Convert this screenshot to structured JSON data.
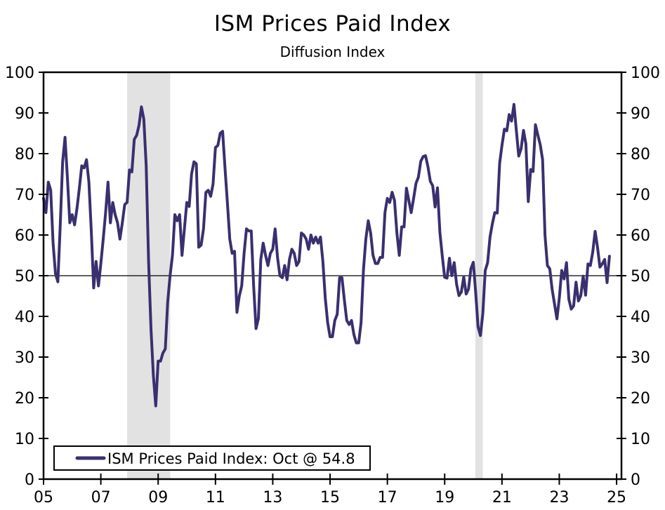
{
  "title": "ISM Prices Paid Index",
  "subtitle": "Diffusion Index",
  "legend": {
    "label": "ISM Prices Paid Index: Oct @ 54.8"
  },
  "colors": {
    "line": "#39306f",
    "recession_band": "#e2e2e2",
    "axis": "#000000",
    "background": "#ffffff"
  },
  "chart_data": {
    "type": "line",
    "title": "ISM Prices Paid Index",
    "subtitle": "Diffusion Index",
    "series_name": "ISM Prices Paid Index",
    "frequency": "monthly",
    "start_year": 2005,
    "start_month": 1,
    "last_point": {
      "label": "Oct",
      "value": 54.8
    },
    "ylim": [
      0,
      100
    ],
    "y_tick_step": 10,
    "y_tick_labels": [
      "0",
      "10",
      "20",
      "30",
      "40",
      "50",
      "60",
      "70",
      "80",
      "90",
      "100"
    ],
    "x_tick_years": [
      2005,
      2007,
      2009,
      2011,
      2013,
      2015,
      2017,
      2019,
      2021,
      2023,
      2025
    ],
    "x_tick_labels": [
      "05",
      "07",
      "09",
      "11",
      "13",
      "15",
      "17",
      "19",
      "21",
      "23",
      "25"
    ],
    "x_domain": [
      2005,
      2025.17
    ],
    "reference_line": 50,
    "recession_bands": [
      [
        2007.92,
        2009.42
      ],
      [
        2020.07,
        2020.33
      ]
    ],
    "legend_position": "bottom-left",
    "grid": "off",
    "values": [
      69,
      65.5,
      73,
      71,
      58,
      50.5,
      48.5,
      62.5,
      78,
      84,
      74,
      63,
      65,
      62.5,
      66.5,
      71.5,
      77,
      76.5,
      78.5,
      73,
      61,
      47,
      53.5,
      47.5,
      53,
      59,
      65.5,
      73,
      63,
      68,
      65,
      63,
      59,
      63,
      67.5,
      68,
      76,
      75.5,
      83.5,
      84.5,
      87,
      91.5,
      88.5,
      77,
      53.5,
      37,
      25.5,
      18,
      29,
      29,
      31,
      32,
      43.5,
      50,
      55,
      65,
      63.5,
      65,
      55,
      61.5,
      68,
      67,
      75,
      78,
      77.5,
      57,
      57.5,
      61.5,
      70.5,
      71,
      69.5,
      72.5,
      81.5,
      82,
      85,
      85.5,
      76.5,
      68,
      59,
      55.5,
      56,
      41,
      45,
      47.5,
      55.5,
      61.5,
      61,
      61,
      47.5,
      37,
      39.5,
      54,
      58,
      55,
      52.5,
      55.5,
      56.5,
      61.5,
      54.5,
      50,
      49.5,
      52.5,
      49,
      54,
      56.5,
      55.5,
      52.5,
      53.5,
      60.5,
      60,
      59,
      56.5,
      60,
      58,
      59.5,
      58,
      59.5,
      53.5,
      44.5,
      38.5,
      35,
      35,
      39,
      40.5,
      49.5,
      49.5,
      44,
      39,
      38,
      39,
      35.5,
      33.5,
      33.5,
      38.5,
      51.5,
      59,
      63.5,
      60.5,
      55,
      53,
      53,
      54.5,
      54.5,
      65.5,
      69,
      68,
      70.5,
      68.5,
      60.5,
      55,
      62,
      62,
      71.5,
      68.5,
      65.5,
      69,
      72.7,
      74.2,
      78.1,
      79.3,
      79.5,
      76.8,
      73.2,
      72.1,
      66.9,
      71.6,
      60.7,
      54.9,
      49.6,
      49.4,
      54.3,
      50,
      53.2,
      47.9,
      45.1,
      46,
      49.7,
      45.5,
      46.7,
      51.7,
      53.3,
      45.9,
      37.4,
      35.3,
      40.8,
      51.3,
      53.2,
      59.5,
      62.8,
      65.5,
      65.4,
      77.6,
      82.1,
      86,
      85.6,
      89.6,
      88,
      92.1,
      85.7,
      79.4,
      81.2,
      85.7,
      82.4,
      68.2,
      76.1,
      75.6,
      87.1,
      84.6,
      82.2,
      78.5,
      60,
      52.5,
      51.7,
      46.6,
      43,
      39.4,
      44.5,
      51.3,
      49.2,
      53.2,
      44.2,
      41.8,
      42.6,
      48.4,
      43.8,
      45.1,
      49.9,
      45.2,
      52.9,
      52.5,
      55.8,
      60.9,
      57,
      52.1,
      52.9,
      54,
      48.3,
      54.8
    ]
  }
}
